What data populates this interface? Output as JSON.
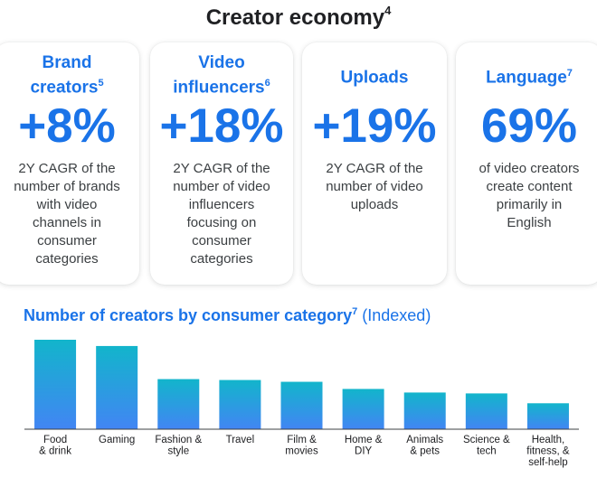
{
  "header": {
    "title": "Creator economy",
    "sup": "4"
  },
  "cards": [
    {
      "title": "Brand\ncreators",
      "sup": "5",
      "stat": "+8%",
      "desc": "2Y CAGR of the\nnumber of brands\nwith video\nchannels in\nconsumer\ncategories"
    },
    {
      "title": "Video\ninfluencers",
      "sup": "6",
      "stat": "+18%",
      "desc": "2Y CAGR of the\nnumber of video\ninfluencers\nfocusing on\nconsumer\ncategories"
    },
    {
      "title": "Uploads",
      "sup": "",
      "stat": "+19%",
      "desc": "2Y CAGR of the\nnumber of video\nuploads"
    },
    {
      "title": "Language",
      "sup": "7",
      "stat": "69%",
      "desc": "of video creators\ncreate content\nprimarily in\nEnglish"
    }
  ],
  "chart_title": {
    "main": "Number of creators by consumer category",
    "sup": "7",
    "suffix": "(Indexed)"
  },
  "chart_data": {
    "type": "bar",
    "title": "Number of creators by consumer category (Indexed)",
    "categories": [
      "Food\n& drink",
      "Gaming",
      "Fashion &\nstyle",
      "Travel",
      "Film &\nmovies",
      "Home &\nDIY",
      "Animals\n& pets",
      "Science &\ntech",
      "Health,\nfitness, &\nself-help"
    ],
    "values": [
      100,
      93,
      56,
      55,
      53,
      45,
      41,
      40,
      29
    ],
    "ylim": [
      0,
      100
    ],
    "grid": false,
    "colors": {
      "bar_bottom": "#4285f4",
      "bar_top": "#12b5cb"
    }
  }
}
